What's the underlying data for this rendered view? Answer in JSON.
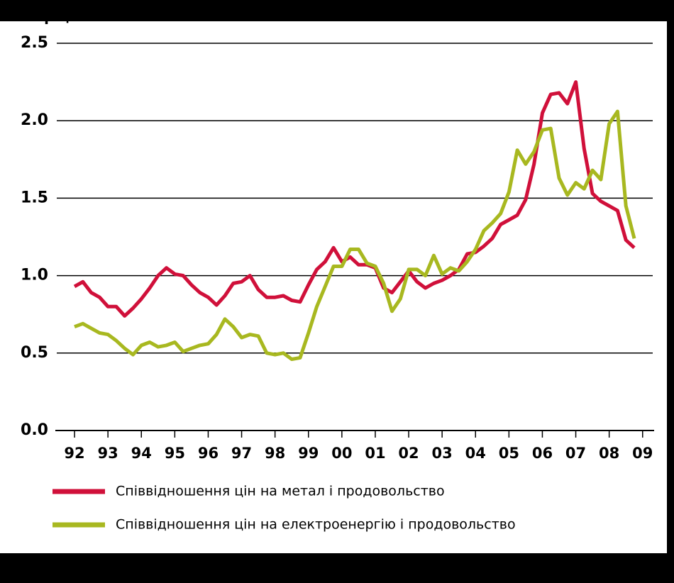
{
  "chart_data": {
    "type": "line",
    "y_label": "Коефіцієнт",
    "x": [
      1992.5,
      1992.75,
      1993,
      1993.25,
      1993.5,
      1993.75,
      1994,
      1994.25,
      1994.5,
      1994.75,
      1995,
      1995.25,
      1995.5,
      1995.75,
      1996,
      1996.25,
      1996.5,
      1996.75,
      1997,
      1997.25,
      1997.5,
      1997.75,
      1998,
      1998.25,
      1998.5,
      1998.75,
      1999,
      1999.25,
      1999.5,
      1999.75,
      2000,
      2000.25,
      2000.5,
      2000.75,
      2001,
      2001.25,
      2001.5,
      2001.75,
      2002,
      2002.25,
      2002.5,
      2002.75,
      2003,
      2003.25,
      2003.5,
      2003.75,
      2004,
      2004.25,
      2004.5,
      2004.75,
      2005,
      2005.25,
      2005.5,
      2005.75,
      2006,
      2006.25,
      2006.5,
      2006.75,
      2007,
      2007.25,
      2007.5,
      2007.75,
      2008,
      2008.25,
      2008.5,
      2008.75,
      2009,
      2009.25
    ],
    "series": [
      {
        "name": "Співвідношення цін на метал і продовольство",
        "color": "#d0103a",
        "values": [
          0.93,
          0.96,
          0.89,
          0.86,
          0.8,
          0.8,
          0.74,
          0.79,
          0.85,
          0.92,
          1.0,
          1.05,
          1.01,
          1.0,
          0.94,
          0.89,
          0.86,
          0.81,
          0.87,
          0.95,
          0.96,
          1.0,
          0.91,
          0.86,
          0.86,
          0.87,
          0.84,
          0.83,
          0.94,
          1.04,
          1.09,
          1.18,
          1.09,
          1.12,
          1.07,
          1.07,
          1.05,
          0.92,
          0.89,
          0.96,
          1.03,
          0.96,
          0.92,
          0.95,
          0.97,
          1.0,
          1.04,
          1.14,
          1.15,
          1.19,
          1.24,
          1.33,
          1.36,
          1.39,
          1.49,
          1.72,
          2.05,
          2.17,
          2.18,
          2.11,
          2.25,
          1.82,
          1.53,
          1.48,
          1.45,
          1.42,
          1.23,
          1.18
        ]
      },
      {
        "name": "Співвідношення цін на електроенергію і продовольство",
        "color": "#a8b820",
        "values": [
          0.67,
          0.69,
          0.66,
          0.63,
          0.62,
          0.58,
          0.53,
          0.49,
          0.55,
          0.57,
          0.54,
          0.55,
          0.57,
          0.51,
          0.53,
          0.55,
          0.56,
          0.62,
          0.72,
          0.67,
          0.6,
          0.62,
          0.61,
          0.5,
          0.49,
          0.5,
          0.46,
          0.47,
          0.63,
          0.8,
          0.93,
          1.06,
          1.06,
          1.17,
          1.17,
          1.08,
          1.06,
          0.95,
          0.77,
          0.85,
          1.04,
          1.04,
          1.0,
          1.13,
          1.01,
          1.05,
          1.03,
          1.09,
          1.17,
          1.29,
          1.34,
          1.4,
          1.54,
          1.81,
          1.72,
          1.8,
          1.94,
          1.95,
          1.63,
          1.52,
          1.6,
          1.56,
          1.68,
          1.62,
          1.98,
          2.06,
          1.45,
          1.24
        ]
      }
    ],
    "xlim": [
      1992,
      2010
    ],
    "xticks": [
      {
        "value": 1992.5,
        "label": "92"
      },
      {
        "value": 1993.5,
        "label": "93"
      },
      {
        "value": 1994.5,
        "label": "94"
      },
      {
        "value": 1995.5,
        "label": "95"
      },
      {
        "value": 1996.5,
        "label": "96"
      },
      {
        "value": 1997.5,
        "label": "97"
      },
      {
        "value": 1998.5,
        "label": "98"
      },
      {
        "value": 1999.5,
        "label": "99"
      },
      {
        "value": 2000.5,
        "label": "00"
      },
      {
        "value": 2001.5,
        "label": "01"
      },
      {
        "value": 2002.5,
        "label": "02"
      },
      {
        "value": 2003.5,
        "label": "03"
      },
      {
        "value": 2004.5,
        "label": "04"
      },
      {
        "value": 2005.5,
        "label": "05"
      },
      {
        "value": 2006.5,
        "label": "06"
      },
      {
        "value": 2007.5,
        "label": "07"
      },
      {
        "value": 2008.5,
        "label": "08"
      },
      {
        "value": 2009.5,
        "label": "09"
      }
    ],
    "ylim": [
      0,
      2.5
    ],
    "yticks": [
      {
        "value": 0,
        "label": "0.0"
      },
      0.5,
      {
        "value": 1,
        "label": "1.0"
      },
      1.5,
      {
        "value": 2,
        "label": "2.0"
      },
      2.5
    ],
    "grid": true
  }
}
